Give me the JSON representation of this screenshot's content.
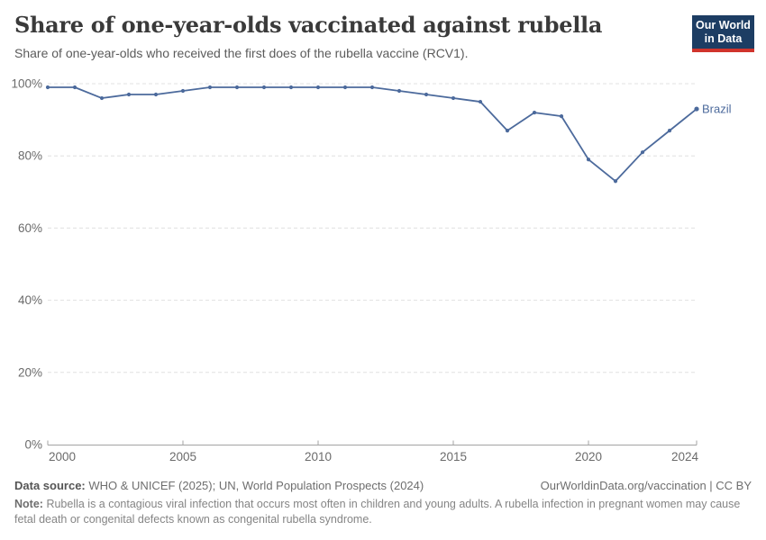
{
  "header": {
    "title": "Share of one-year-olds vaccinated against rubella",
    "subtitle": "Share of one-year-olds who received the first does of the rubella vaccine (RCV1)."
  },
  "logo": {
    "line1": "Our World",
    "line2": "in Data"
  },
  "chart_data": {
    "type": "line",
    "title": "Share of one-year-olds vaccinated against rubella",
    "xlabel": "",
    "ylabel": "",
    "xlim": [
      2000,
      2024
    ],
    "ylim": [
      0,
      100
    ],
    "grid": "horizontal-dashed",
    "legend_position": "end-of-line-label",
    "x_ticks": [
      "2000",
      "2005",
      "2010",
      "2015",
      "2020",
      "2024"
    ],
    "y_ticks": [
      "0%",
      "20%",
      "40%",
      "60%",
      "80%",
      "100%"
    ],
    "series": [
      {
        "name": "Brazil",
        "color": "#4c6a9c",
        "x": [
          2000,
          2001,
          2002,
          2003,
          2004,
          2005,
          2006,
          2007,
          2008,
          2009,
          2010,
          2011,
          2012,
          2013,
          2014,
          2015,
          2016,
          2017,
          2018,
          2019,
          2020,
          2021,
          2022,
          2023,
          2024
        ],
        "values": [
          99,
          99,
          96,
          97,
          97,
          98,
          99,
          99,
          99,
          99,
          99,
          99,
          99,
          98,
          97,
          96,
          95,
          87,
          92,
          91,
          79,
          73,
          81,
          87,
          93
        ]
      }
    ]
  },
  "footer": {
    "source_label": "Data source:",
    "source_text": "WHO & UNICEF (2025); UN, World Population Prospects (2024)",
    "link_text": "OurWorldinData.org/vaccination | CC BY",
    "note_label": "Note:",
    "note_text": "Rubella is a contagious viral infection that occurs most often in children and young adults. A rubella infection in pregnant women may cause fetal death or congenital defects known as congenital rubella syndrome."
  },
  "colors": {
    "line": "#4c6a9c",
    "logo_bg": "#1d3d63",
    "logo_bar": "#d0342c",
    "grid": "#e0e0e0",
    "axis": "#a3a3a3",
    "tick_label": "#6b6b6b",
    "title": "#3a3a3a",
    "subtitle": "#5b5b5b"
  }
}
